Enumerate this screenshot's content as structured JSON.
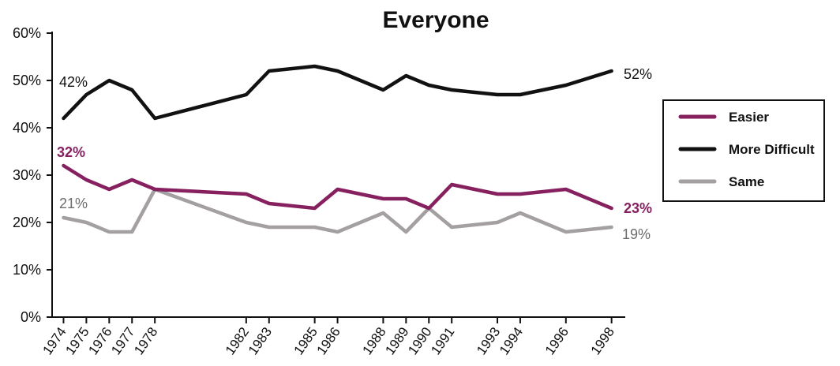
{
  "chart_data": {
    "type": "line",
    "title": "Everyone",
    "xlabel": "",
    "ylabel": "",
    "ylim": [
      0,
      60
    ],
    "yticks": [
      "0%",
      "10%",
      "20%",
      "30%",
      "40%",
      "50%",
      "60%"
    ],
    "x": [
      "1974",
      "1975",
      "1976",
      "1977",
      "1978",
      "1982",
      "1983",
      "1985",
      "1986",
      "1988",
      "1989",
      "1990",
      "1991",
      "1993",
      "1994",
      "1996",
      "1998"
    ],
    "legend_position": "right",
    "grid": false,
    "series": [
      {
        "name": "Easier",
        "color": "#86205f",
        "values": [
          32,
          29,
          27,
          29,
          27,
          26,
          24,
          23,
          27,
          25,
          25,
          23,
          28,
          26,
          26,
          27,
          23
        ],
        "start_label": "32%",
        "end_label": "23%"
      },
      {
        "name": "More Difficult",
        "color": "#111111",
        "values": [
          42,
          47,
          50,
          48,
          42,
          47,
          52,
          53,
          52,
          48,
          51,
          49,
          48,
          47,
          47,
          49,
          52
        ],
        "start_label": "42%",
        "end_label": "52%"
      },
      {
        "name": "Same",
        "color": "#a4a0a2",
        "values": [
          21,
          20,
          18,
          18,
          27,
          20,
          19,
          19,
          18,
          22,
          18,
          23,
          19,
          20,
          22,
          18,
          19
        ],
        "start_label": "21%",
        "end_label": "19%"
      }
    ]
  }
}
